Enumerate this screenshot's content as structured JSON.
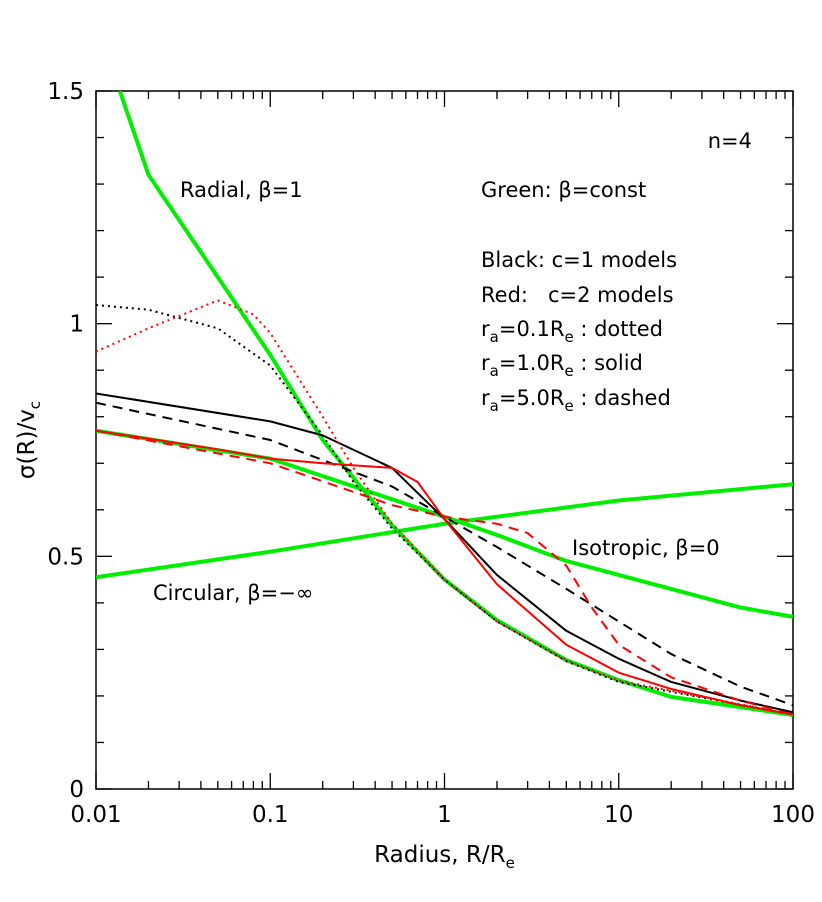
{
  "chart_data": {
    "type": "line",
    "xscale": "log",
    "xlim": [
      0.01,
      100
    ],
    "ylim": [
      0,
      1.5
    ],
    "xticks": [
      0.01,
      0.1,
      1,
      10,
      100
    ],
    "yticks": [
      0,
      0.5,
      1,
      1.5
    ],
    "xminor_ticks": [
      0.02,
      0.03,
      0.04,
      0.05,
      0.06,
      0.07,
      0.08,
      0.09,
      0.2,
      0.3,
      0.4,
      0.5,
      0.6,
      0.7,
      0.8,
      0.9,
      2,
      3,
      4,
      5,
      6,
      7,
      8,
      9,
      20,
      30,
      40,
      50,
      60,
      70,
      80,
      90
    ],
    "yminor_ticks": [
      0.1,
      0.2,
      0.3,
      0.4,
      0.6,
      0.7,
      0.8,
      0.9,
      1.1,
      1.2,
      1.3,
      1.4
    ],
    "xlabel": [
      "Radius, R/R",
      "e"
    ],
    "ylabel": [
      "σ(R)/v",
      "c"
    ],
    "annotations": [
      [
        "n=4"
      ],
      [
        "Radial, β=1"
      ],
      [
        "Green: β=const"
      ],
      [
        "Black: c=1 models"
      ],
      [
        "Red:   c=2 models"
      ],
      [
        "r",
        "a",
        "=0.1R",
        "e",
        " : dotted"
      ],
      [
        "r",
        "a",
        "=1.0R",
        "e",
        " : solid"
      ],
      [
        "r",
        "a",
        "=5.0R",
        "e",
        " : dashed"
      ],
      [
        "Isotropic, β=0"
      ],
      [
        "Circular, β=−∞"
      ]
    ],
    "series": [
      {
        "color": "#00ee00",
        "dash": "solid",
        "width": 4,
        "x": [
          0.0137,
          0.02,
          0.05,
          0.1,
          0.2,
          0.5,
          1,
          2,
          5,
          10,
          20,
          50,
          100
        ],
        "values": [
          1.5,
          1.32,
          1.1,
          0.933,
          0.75,
          0.567,
          0.45,
          0.363,
          0.277,
          0.234,
          0.198,
          0.176,
          0.159
        ]
      },
      {
        "color": "#00ee00",
        "dash": "solid",
        "width": 4,
        "x": [
          0.01,
          0.1,
          1,
          2,
          5,
          10,
          20,
          50,
          100
        ],
        "values": [
          0.77,
          0.71,
          0.585,
          0.546,
          0.49,
          0.46,
          0.43,
          0.39,
          0.37
        ]
      },
      {
        "color": "#00ee00",
        "dash": "solid",
        "width": 4,
        "x": [
          0.01,
          0.1,
          1,
          10,
          100
        ],
        "values": [
          0.455,
          0.51,
          0.57,
          0.62,
          0.655
        ]
      },
      {
        "color": "#000000",
        "dash": "dotted",
        "width": 2,
        "x": [
          0.01,
          0.02,
          0.05,
          0.1,
          0.2,
          0.3,
          0.5,
          1,
          2,
          5,
          10,
          100
        ],
        "values": [
          1.04,
          1.03,
          0.99,
          0.91,
          0.76,
          0.66,
          0.56,
          0.45,
          0.36,
          0.275,
          0.23,
          0.16
        ]
      },
      {
        "color": "#000000",
        "dash": "solid",
        "width": 2,
        "x": [
          0.01,
          0.1,
          0.2,
          0.5,
          1,
          2,
          5,
          10,
          20,
          50,
          100
        ],
        "values": [
          0.85,
          0.79,
          0.76,
          0.69,
          0.58,
          0.46,
          0.34,
          0.28,
          0.23,
          0.19,
          0.165
        ]
      },
      {
        "color": "#000000",
        "dash": "dashed",
        "width": 2,
        "x": [
          0.01,
          0.1,
          0.5,
          1,
          2,
          5,
          10,
          20,
          50,
          100
        ],
        "values": [
          0.83,
          0.75,
          0.65,
          0.585,
          0.52,
          0.43,
          0.36,
          0.29,
          0.22,
          0.18
        ]
      },
      {
        "color": "#ff0000",
        "dash": "dotted",
        "width": 2,
        "x": [
          0.01,
          0.02,
          0.05,
          0.08,
          0.1,
          0.2,
          0.3,
          0.5,
          1,
          2,
          5,
          10,
          100
        ],
        "values": [
          0.94,
          0.99,
          1.05,
          1.02,
          0.98,
          0.8,
          0.69,
          0.57,
          0.45,
          0.36,
          0.277,
          0.233,
          0.16
        ]
      },
      {
        "color": "#ff0000",
        "dash": "solid",
        "width": 2,
        "x": [
          0.01,
          0.05,
          0.1,
          0.2,
          0.5,
          0.7,
          1,
          2,
          5,
          10,
          20,
          50,
          100
        ],
        "values": [
          0.77,
          0.73,
          0.71,
          0.7,
          0.69,
          0.66,
          0.58,
          0.44,
          0.31,
          0.25,
          0.215,
          0.18,
          0.16
        ]
      },
      {
        "color": "#ff0000",
        "dash": "dashed",
        "width": 2,
        "x": [
          0.01,
          0.1,
          0.5,
          1,
          2,
          3,
          5,
          7,
          10,
          20,
          50,
          100
        ],
        "values": [
          0.77,
          0.7,
          0.61,
          0.585,
          0.57,
          0.55,
          0.48,
          0.39,
          0.31,
          0.24,
          0.19,
          0.16
        ]
      }
    ]
  }
}
